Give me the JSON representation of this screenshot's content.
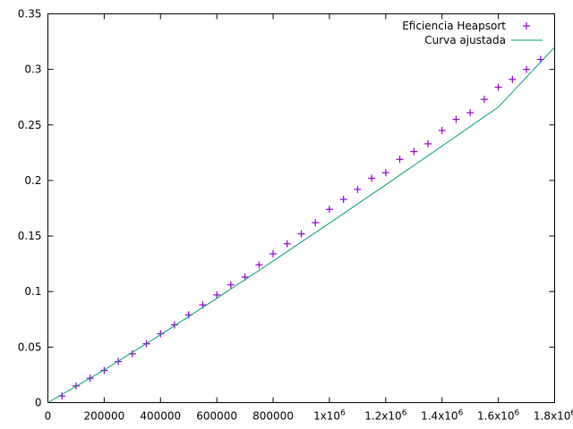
{
  "colors": {
    "background": "#ffffff",
    "axis": "#000000",
    "points": "#9400d3",
    "fit": "#009e73"
  },
  "legend": {
    "position": "top-right",
    "entries": [
      {
        "label": "Eficiencia Heapsort",
        "marker": "plus",
        "color": "#9400d3"
      },
      {
        "label": "Curva ajustada",
        "marker": "line",
        "color": "#009e73"
      }
    ]
  },
  "chart_data": {
    "type": "scatter",
    "title": "",
    "xlabel": "",
    "ylabel": "",
    "xlim": [
      0,
      1800000
    ],
    "ylim": [
      0,
      0.35
    ],
    "grid": false,
    "x_ticks": [
      {
        "value": 0,
        "label": "0"
      },
      {
        "value": 200000,
        "label": "200000"
      },
      {
        "value": 400000,
        "label": "400000"
      },
      {
        "value": 600000,
        "label": "600000"
      },
      {
        "value": 800000,
        "label": "800000"
      },
      {
        "value": 1000000,
        "label": "1x10",
        "sup": "6"
      },
      {
        "value": 1200000,
        "label": "1.2x10",
        "sup": "6"
      },
      {
        "value": 1400000,
        "label": "1.4x10",
        "sup": "6"
      },
      {
        "value": 1600000,
        "label": "1.6x10",
        "sup": "6"
      },
      {
        "value": 1800000,
        "label": "1.8x10",
        "sup": "6"
      }
    ],
    "y_ticks": [
      {
        "value": 0,
        "label": "0"
      },
      {
        "value": 0.05,
        "label": "0.05"
      },
      {
        "value": 0.1,
        "label": "0.1"
      },
      {
        "value": 0.15,
        "label": "0.15"
      },
      {
        "value": 0.2,
        "label": "0.2"
      },
      {
        "value": 0.25,
        "label": "0.25"
      },
      {
        "value": 0.3,
        "label": "0.3"
      },
      {
        "value": 0.35,
        "label": "0.35"
      }
    ],
    "series": [
      {
        "name": "Eficiencia Heapsort",
        "kind": "points",
        "x": [
          50000,
          100000,
          150000,
          200000,
          250000,
          300000,
          350000,
          400000,
          450000,
          500000,
          550000,
          600000,
          650000,
          700000,
          750000,
          800000,
          850000,
          900000,
          950000,
          1000000,
          1050000,
          1100000,
          1150000,
          1200000,
          1250000,
          1300000,
          1350000,
          1400000,
          1450000,
          1500000,
          1550000,
          1600000,
          1650000,
          1700000,
          1750000
        ],
        "y": [
          0.006,
          0.015,
          0.022,
          0.029,
          0.037,
          0.044,
          0.053,
          0.062,
          0.07,
          0.079,
          0.088,
          0.097,
          0.106,
          0.113,
          0.124,
          0.134,
          0.143,
          0.152,
          0.162,
          0.174,
          0.183,
          0.192,
          0.202,
          0.207,
          0.219,
          0.226,
          0.233,
          0.245,
          0.255,
          0.261,
          0.273,
          0.284,
          0.291,
          0.3,
          0.309
        ]
      },
      {
        "name": "Curva ajustada",
        "kind": "line",
        "x": [
          0,
          200000,
          400000,
          600000,
          800000,
          1000000,
          1200000,
          1400000,
          1600000,
          1800000
        ],
        "y": [
          0.0,
          0.0294,
          0.0611,
          0.0939,
          0.1275,
          0.1616,
          0.1961,
          0.231,
          0.2661,
          0.32
        ]
      }
    ]
  }
}
